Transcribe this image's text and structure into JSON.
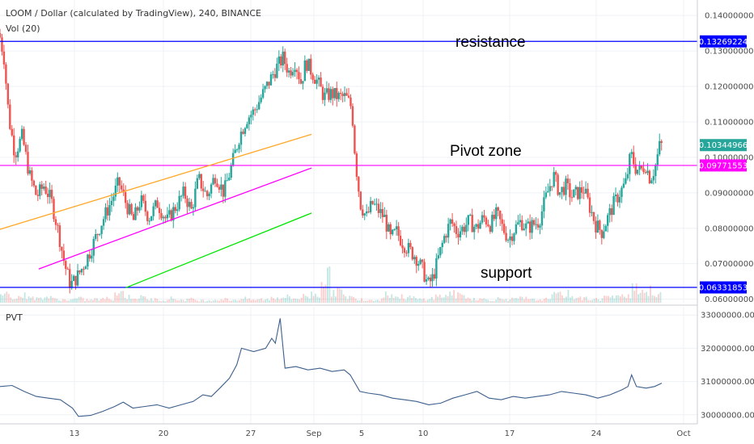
{
  "header": {
    "title": "LOOM / Dollar (calculated by TradingView), 240, BINANCE",
    "volume_indicator": "Vol (20)",
    "lower_indicator": "PVT"
  },
  "colors": {
    "resistance_line": "#0000ff",
    "support_line": "#0000ff",
    "pivot_line": "#ff00ff",
    "upper_channel": "#ffa726",
    "mid_channel": "#ff00ff",
    "lower_channel": "#00e600",
    "bull_candle": "#26a69a",
    "bear_candle": "#ef5350",
    "pvt_line": "#3c5f8c",
    "last_price_tag": "#26a69a"
  },
  "chart_data": [
    {
      "type": "candlestick",
      "title": "LOOM / Dollar (calculated by TradingView), 240, BINANCE",
      "x_ticks": [
        "13",
        "20",
        "27",
        "Sep",
        "5",
        "10",
        "17",
        "24",
        "Oct"
      ],
      "y_ticks": [
        "0.06000000",
        "0.07000000",
        "0.08000000",
        "0.09000000",
        "0.10000000",
        "0.11000000",
        "0.12000000",
        "0.13000000",
        "0.14000000"
      ],
      "ylim": [
        0.059,
        0.143
      ],
      "price_tags": {
        "resistance": "0.13269224",
        "last": "0.10344966",
        "pivot": "0.09771553",
        "support": "0.06331853"
      },
      "levels": [
        {
          "label": "resistance",
          "value": 0.13269224
        },
        {
          "label": "Pivot zone",
          "value": 0.09771553
        },
        {
          "label": "support",
          "value": 0.06331853
        }
      ],
      "channel": {
        "upper": {
          "from": [
            5.8,
            0.0795
          ],
          "to": [
            31.8,
            0.1065
          ]
        },
        "mid": {
          "from": [
            9.2,
            0.0685
          ],
          "to": [
            31.8,
            0.097
          ]
        },
        "lower": {
          "from": [
            16.4,
            0.0632
          ],
          "to": [
            31.8,
            0.0843
          ]
        }
      },
      "price_path": [
        [
          6.1,
          0.135
        ],
        [
          6.5,
          0.128
        ],
        [
          6.9,
          0.111
        ],
        [
          7.4,
          0.101
        ],
        [
          8.0,
          0.106
        ],
        [
          8.6,
          0.095
        ],
        [
          9.2,
          0.089
        ],
        [
          9.8,
          0.092
        ],
        [
          10.4,
          0.088
        ],
        [
          11.0,
          0.079
        ],
        [
          11.5,
          0.07
        ],
        [
          12.0,
          0.064
        ],
        [
          12.5,
          0.066
        ],
        [
          13.0,
          0.069
        ],
        [
          13.7,
          0.074
        ],
        [
          14.5,
          0.081
        ],
        [
          15.3,
          0.087
        ],
        [
          16.0,
          0.093
        ],
        [
          16.6,
          0.087
        ],
        [
          17.2,
          0.082
        ],
        [
          17.8,
          0.088
        ],
        [
          18.5,
          0.083
        ],
        [
          19.2,
          0.087
        ],
        [
          20.0,
          0.082
        ],
        [
          20.7,
          0.086
        ],
        [
          21.4,
          0.09
        ],
        [
          22.0,
          0.085
        ],
        [
          22.6,
          0.094
        ],
        [
          23.3,
          0.089
        ],
        [
          24.0,
          0.095
        ],
        [
          24.7,
          0.09
        ],
        [
          25.3,
          0.097
        ],
        [
          26.0,
          0.106
        ],
        [
          26.6,
          0.111
        ],
        [
          27.2,
          0.113
        ],
        [
          27.8,
          0.117
        ],
        [
          28.4,
          0.121
        ],
        [
          29.0,
          0.125
        ],
        [
          29.6,
          0.128
        ],
        [
          30.1,
          0.124
        ],
        [
          30.6,
          0.127
        ],
        [
          31.1,
          0.121
        ],
        [
          31.5,
          0.127
        ],
        [
          32.0,
          0.124
        ],
        [
          32.5,
          0.121
        ],
        [
          33.0,
          0.117
        ],
        [
          33.6,
          0.118
        ],
        [
          34.2,
          0.117
        ],
        [
          34.8,
          0.117
        ],
        [
          35.3,
          0.114
        ],
        [
          35.6,
          0.099
        ],
        [
          36.0,
          0.087
        ],
        [
          36.5,
          0.083
        ],
        [
          37.0,
          0.087
        ],
        [
          37.5,
          0.085
        ],
        [
          38.0,
          0.083
        ],
        [
          38.5,
          0.077
        ],
        [
          39.0,
          0.079
        ],
        [
          39.5,
          0.076
        ],
        [
          40.0,
          0.074
        ],
        [
          40.6,
          0.072
        ],
        [
          41.2,
          0.068
        ],
        [
          41.6,
          0.064
        ],
        [
          42.0,
          0.066
        ],
        [
          42.5,
          0.072
        ],
        [
          43.0,
          0.078
        ],
        [
          43.5,
          0.082
        ],
        [
          44.0,
          0.079
        ],
        [
          44.5,
          0.08
        ],
        [
          45.0,
          0.082
        ],
        [
          45.6,
          0.08
        ],
        [
          46.2,
          0.083
        ],
        [
          46.8,
          0.081
        ],
        [
          47.3,
          0.084
        ],
        [
          47.8,
          0.08
        ],
        [
          48.3,
          0.077
        ],
        [
          48.8,
          0.08
        ],
        [
          49.3,
          0.082
        ],
        [
          49.8,
          0.08
        ],
        [
          50.3,
          0.081
        ],
        [
          50.8,
          0.082
        ],
        [
          51.4,
          0.089
        ],
        [
          52.0,
          0.095
        ],
        [
          52.5,
          0.09
        ],
        [
          53.0,
          0.092
        ],
        [
          53.5,
          0.089
        ],
        [
          54.0,
          0.09
        ],
        [
          54.5,
          0.091
        ],
        [
          55.0,
          0.086
        ],
        [
          55.5,
          0.081
        ],
        [
          56.0,
          0.079
        ],
        [
          56.5,
          0.083
        ],
        [
          57.0,
          0.087
        ],
        [
          57.5,
          0.09
        ],
        [
          58.0,
          0.093
        ],
        [
          58.4,
          0.101
        ],
        [
          58.8,
          0.097
        ],
        [
          59.2,
          0.096
        ],
        [
          59.6,
          0.098
        ],
        [
          60.0,
          0.094
        ],
        [
          60.4,
          0.097
        ],
        [
          60.8,
          0.1034
        ]
      ],
      "volume_ylim": [
        0,
        1
      ],
      "volume_values": [
        0.3,
        0.2,
        0.25,
        0.15,
        0.2,
        0.12,
        0.1,
        0.14,
        0.1,
        0.12,
        0.15,
        0.35,
        0.2,
        0.18,
        0.12,
        0.1,
        0.15,
        0.1,
        0.12,
        0.08,
        0.1,
        0.12,
        0.1,
        0.14,
        0.1,
        0.12,
        0.18,
        0.2,
        0.15,
        0.22,
        0.3,
        0.85,
        0.4,
        0.2,
        0.15,
        0.1,
        0.12,
        0.3,
        0.2,
        0.18,
        0.12,
        0.15,
        0.22,
        0.3,
        0.25,
        0.15,
        0.12,
        0.1,
        0.14,
        0.12,
        0.15,
        0.1,
        0.12,
        0.25,
        0.3,
        0.2,
        0.15,
        0.12,
        0.2,
        0.18,
        0.3,
        0.55,
        0.4,
        0.25
      ]
    },
    {
      "type": "line",
      "title": "PVT",
      "y_ticks": [
        "30000000.0000",
        "31000000.0000",
        "32000000.0000",
        "33000000.0000"
      ],
      "ylim": [
        29800000,
        33200000
      ],
      "series": [
        {
          "values": [
            [
              6.0,
              30850000
            ],
            [
              7.0,
              30880000
            ],
            [
              8.0,
              30700000
            ],
            [
              9.0,
              30550000
            ],
            [
              10.0,
              30500000
            ],
            [
              11.0,
              30450000
            ],
            [
              12.0,
              30200000
            ],
            [
              12.5,
              29950000
            ],
            [
              13.5,
              29980000
            ],
            [
              14.5,
              30100000
            ],
            [
              15.5,
              30250000
            ],
            [
              16.2,
              30380000
            ],
            [
              17.0,
              30200000
            ],
            [
              18.0,
              30250000
            ],
            [
              19.0,
              30300000
            ],
            [
              20.0,
              30200000
            ],
            [
              21.0,
              30300000
            ],
            [
              22.0,
              30400000
            ],
            [
              22.8,
              30600000
            ],
            [
              23.5,
              30550000
            ],
            [
              24.2,
              30800000
            ],
            [
              25.0,
              31100000
            ],
            [
              25.6,
              31500000
            ],
            [
              26.0,
              32000000
            ],
            [
              27.0,
              31900000
            ],
            [
              28.0,
              32000000
            ],
            [
              28.5,
              32300000
            ],
            [
              28.8,
              32150000
            ],
            [
              29.2,
              32900000
            ],
            [
              29.6,
              31400000
            ],
            [
              30.5,
              31450000
            ],
            [
              31.5,
              31350000
            ],
            [
              32.5,
              31400000
            ],
            [
              33.5,
              31300000
            ],
            [
              34.5,
              31350000
            ],
            [
              35.0,
              31200000
            ],
            [
              35.8,
              30700000
            ],
            [
              36.5,
              30650000
            ],
            [
              37.5,
              30600000
            ],
            [
              38.5,
              30500000
            ],
            [
              39.5,
              30450000
            ],
            [
              40.5,
              30400000
            ],
            [
              41.5,
              30300000
            ],
            [
              42.5,
              30350000
            ],
            [
              43.5,
              30500000
            ],
            [
              44.5,
              30600000
            ],
            [
              45.5,
              30700000
            ],
            [
              46.5,
              30500000
            ],
            [
              47.5,
              30450000
            ],
            [
              48.5,
              30550000
            ],
            [
              49.5,
              30500000
            ],
            [
              50.5,
              30550000
            ],
            [
              51.5,
              30600000
            ],
            [
              52.5,
              30700000
            ],
            [
              53.5,
              30650000
            ],
            [
              54.5,
              30600000
            ],
            [
              55.5,
              30500000
            ],
            [
              56.5,
              30600000
            ],
            [
              57.5,
              30750000
            ],
            [
              58.0,
              30850000
            ],
            [
              58.3,
              31200000
            ],
            [
              58.7,
              30850000
            ],
            [
              59.5,
              30800000
            ],
            [
              60.2,
              30850000
            ],
            [
              60.8,
              30950000
            ]
          ]
        }
      ]
    }
  ]
}
